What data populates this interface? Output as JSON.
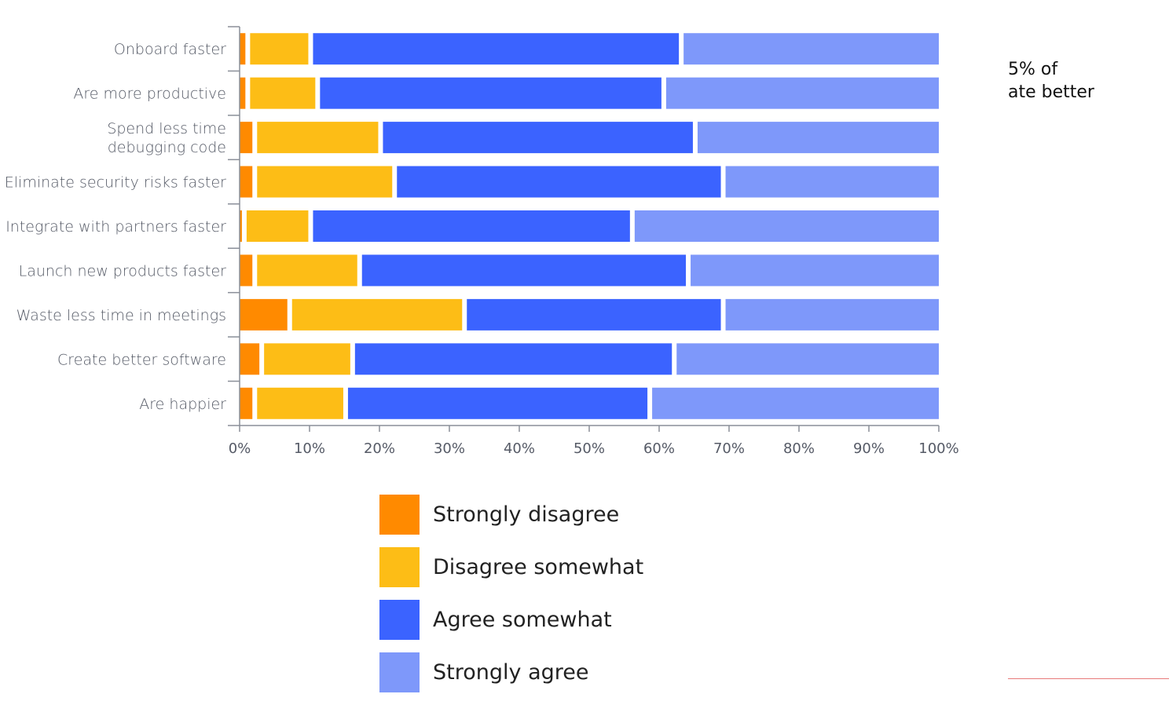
{
  "chart_data": {
    "type": "bar",
    "orientation": "horizontal",
    "stacked": true,
    "categories": [
      "Onboard faster",
      "Are more productive",
      "Spend less time debugging code",
      "Eliminate security risks faster",
      "Integrate with partners faster",
      "Launch new products faster",
      "Waste less time in meetings",
      "Create better software",
      "Are happier"
    ],
    "category_lines": [
      [
        "Onboard faster"
      ],
      [
        "Are more productive"
      ],
      [
        "Spend less time",
        "debugging code"
      ],
      [
        "Eliminate security risks faster"
      ],
      [
        "Integrate with partners faster"
      ],
      [
        "Launch new products faster"
      ],
      [
        "Waste less time in meetings"
      ],
      [
        "Create better software"
      ],
      [
        "Are happier"
      ]
    ],
    "series": [
      {
        "name": "Strongly disagree",
        "color": "#ff8a00",
        "values": [
          1.5,
          1.5,
          2.5,
          2.5,
          1.0,
          2.5,
          7.5,
          3.5,
          2.5
        ]
      },
      {
        "name": "Disagree somewhat",
        "color": "#fdbd16",
        "values": [
          9.0,
          10.0,
          18.0,
          20.0,
          9.5,
          15.0,
          25.0,
          13.0,
          13.0
        ]
      },
      {
        "name": "Agree somewhat",
        "color": "#3b63ff",
        "values": [
          53.0,
          49.5,
          45.0,
          47.0,
          46.0,
          47.0,
          37.0,
          46.0,
          43.5
        ]
      },
      {
        "name": "Strongly agree",
        "color": "#7e98fa",
        "values": [
          36.5,
          39.0,
          34.5,
          30.5,
          43.5,
          35.5,
          30.5,
          37.5,
          41.0
        ]
      }
    ],
    "xlim": [
      0,
      100
    ],
    "x_ticks": [
      "0%",
      "10%",
      "20%",
      "30%",
      "40%",
      "50%",
      "60%",
      "70%",
      "80%",
      "90%",
      "100%"
    ],
    "legend_position": "bottom",
    "grid": false
  },
  "side_note": {
    "line1": "5% of",
    "line2": "ate better"
  }
}
